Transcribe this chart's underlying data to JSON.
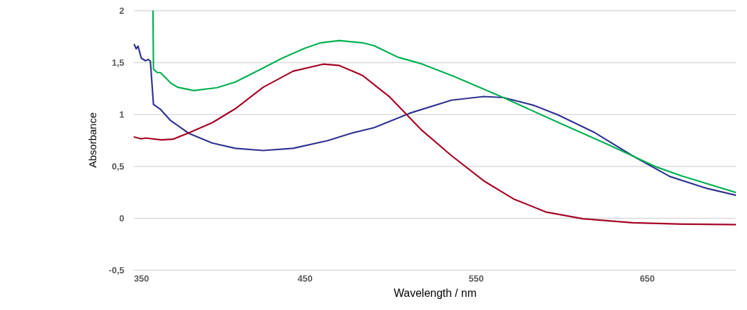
{
  "chart_data": {
    "type": "line",
    "xlabel": "Wavelength / nm",
    "ylabel": "Absorbance",
    "xlim": [
      350,
      702
    ],
    "ylim": [
      -0.5,
      2
    ],
    "xticks": [
      350,
      450,
      550,
      650
    ],
    "yticks": [
      {
        "value": -0.5,
        "label": "-0,5"
      },
      0,
      {
        "value": 0.5,
        "label": "0,5"
      },
      1,
      {
        "value": 1.5,
        "label": "1,5"
      },
      2
    ],
    "grid": "y",
    "series": [
      {
        "color": "#2e3192",
        "x": [
          350.4,
          351.5,
          352.6,
          354.5,
          356.9,
          358.5,
          359.8,
          361.6,
          365.6,
          371.6,
          382.3,
          396,
          409.5,
          425.7,
          443.1,
          463.4,
          477,
          490.5,
          499.8,
          511.3,
          535.8,
          554.6,
          566.1,
          583.6,
          598,
          619.6,
          641.5,
          663.2,
          684.8,
          702
        ],
        "values": [
          1.67,
          1.63,
          1.655,
          1.54,
          1.515,
          1.527,
          1.51,
          1.094,
          1.048,
          0.939,
          0.815,
          0.722,
          0.671,
          0.65,
          0.671,
          0.745,
          0.815,
          0.87,
          0.931,
          1.009,
          1.135,
          1.17,
          1.16,
          1.086,
          0.993,
          0.821,
          0.6,
          0.401,
          0.286,
          0.219
        ]
      },
      {
        "color": "#00b050",
        "x": [
          361.3,
          361.6,
          363.6,
          365.7,
          371.7,
          375.8,
          385.2,
          398.7,
          409.5,
          425.7,
          436.5,
          450,
          459.4,
          470.2,
          483.7,
          490.5,
          504.1,
          518.5,
          537.3,
          566.1,
          598,
          626.9,
          655.9,
          670.3,
          702
        ],
        "values": [
          2,
          1.434,
          1.403,
          1.4,
          1.3,
          1.259,
          1.228,
          1.255,
          1.31,
          1.445,
          1.537,
          1.635,
          1.688,
          1.709,
          1.688,
          1.66,
          1.551,
          1.484,
          1.363,
          1.16,
          0.921,
          0.71,
          0.489,
          0.405,
          0.246
        ]
      },
      {
        "color": "#a50021",
        "x": [
          350.4,
          354.2,
          357,
          366.3,
          373,
          382.5,
          396,
          409.5,
          425.7,
          443.2,
          460.8,
          470.2,
          483.7,
          499.8,
          518.5,
          535.8,
          554.7,
          572,
          590.9,
          612.5,
          641.5,
          670.3,
          702
        ],
        "values": [
          0.78,
          0.763,
          0.77,
          0.753,
          0.759,
          0.821,
          0.918,
          1.053,
          1.259,
          1.414,
          1.482,
          1.469,
          1.374,
          1.164,
          0.844,
          0.6,
          0.357,
          0.184,
          0.058,
          -0.008,
          -0.046,
          -0.059,
          -0.064
        ]
      }
    ]
  }
}
